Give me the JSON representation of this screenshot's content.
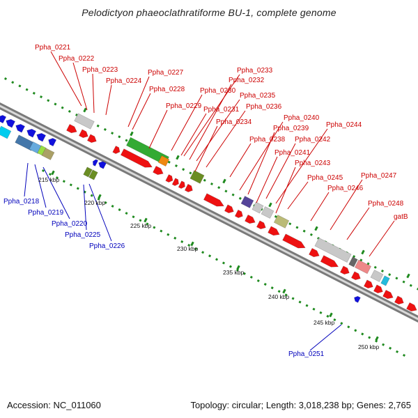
{
  "title": "Pelodictyon phaeoclathratiforme BU-1, complete genome",
  "footer": {
    "accession": "Accession: NC_011060",
    "topology": "Topology: circular; Length: 3,018,238 bp; Genes: 2,765"
  },
  "colors": {
    "backbone": "#888888",
    "tick": "#1f8a1f",
    "forward_label": "#cc0000",
    "reverse_label": "#0000bb",
    "forward_gene": "#ee1111",
    "reverse_gene": "#1111dd"
  },
  "kbp_labels": [
    "215 kbp",
    "220 kbp",
    "225 kbp",
    "230 kbp",
    "235 kbp",
    "240 kbp",
    "245 kbp",
    "250 kbp"
  ],
  "forward_labels": [
    "Ppha_0221",
    "Ppha_0222",
    "Ppha_0223",
    "Ppha_0224",
    "Ppha_0227",
    "Ppha_0228",
    "Ppha_0229",
    "Ppha_0230",
    "Ppha_0231",
    "Ppha_0233",
    "Ppha_0232",
    "Ppha_0235",
    "Ppha_0236",
    "Ppha_0234",
    "Ppha_0240",
    "Ppha_0239",
    "Ppha_0238",
    "Ppha_0244",
    "Ppha_0242",
    "Ppha_0241",
    "Ppha_0243",
    "Ppha_0245",
    "Ppha_0246",
    "Ppha_0247",
    "Ppha_0248",
    "gatB"
  ],
  "reverse_labels": [
    "Ppha_0218",
    "Ppha_0219",
    "Ppha_0220",
    "Ppha_0225",
    "Ppha_0226",
    "Ppha_0251"
  ]
}
